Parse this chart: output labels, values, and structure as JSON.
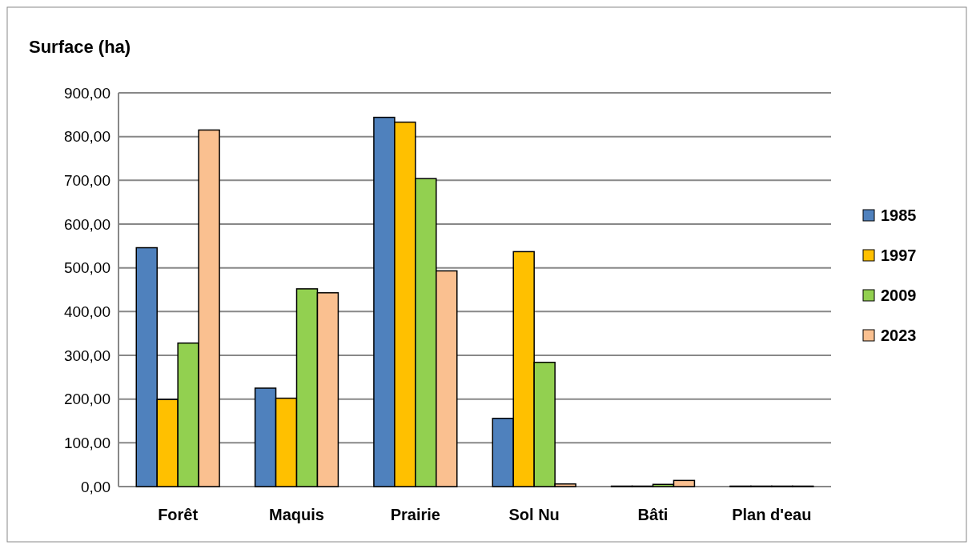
{
  "chart_data": {
    "type": "bar",
    "title": "Surface (ha)",
    "categories": [
      "Forêt",
      "Maquis",
      "Prairie",
      "Sol Nu",
      "Bâti",
      "Plan d'eau"
    ],
    "series": [
      {
        "name": "1985",
        "color": "#4f81bd",
        "values": [
          546,
          225,
          844,
          156,
          1,
          1
        ]
      },
      {
        "name": "1997",
        "color": "#ffc000",
        "values": [
          199,
          202,
          833,
          537,
          1,
          1
        ]
      },
      {
        "name": "2009",
        "color": "#92d050",
        "values": [
          328,
          452,
          704,
          284,
          5,
          1
        ]
      },
      {
        "name": "2023",
        "color": "#fac090",
        "values": [
          815,
          443,
          493,
          6,
          14,
          1
        ]
      }
    ],
    "ylim": [
      0,
      900
    ],
    "yticks": [
      {
        "value": 0,
        "label": "0,00"
      },
      {
        "value": 100,
        "label": "100,00"
      },
      {
        "value": 200,
        "label": "200,00"
      },
      {
        "value": 300,
        "label": "300,00"
      },
      {
        "value": 400,
        "label": "400,00"
      },
      {
        "value": 500,
        "label": "500,00"
      },
      {
        "value": 600,
        "label": "600,00"
      },
      {
        "value": 700,
        "label": "700,00"
      },
      {
        "value": 800,
        "label": "800,00"
      },
      {
        "value": 900,
        "label": "900,00"
      }
    ],
    "grid": "y",
    "legend": "right"
  }
}
